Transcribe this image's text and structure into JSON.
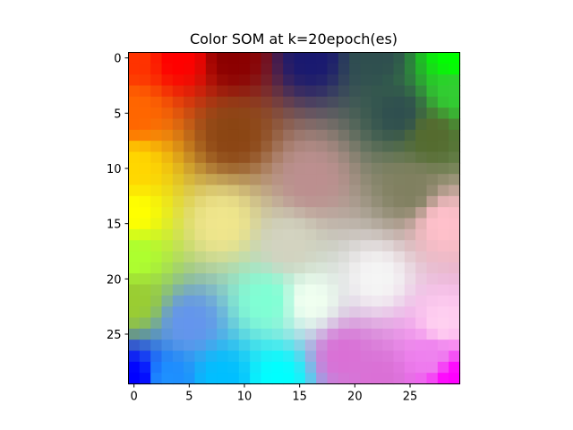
{
  "chart_data": {
    "type": "heatmap",
    "title": "Color SOM at k=20epoch(es)",
    "xlabel": "",
    "ylabel": "",
    "grid": false,
    "xlim": [
      -0.5,
      29.5
    ],
    "ylim": [
      29.5,
      -0.5
    ],
    "x_ticks": [
      0,
      5,
      10,
      15,
      20,
      25
    ],
    "y_ticks": [
      0,
      5,
      10,
      15,
      20,
      25
    ],
    "rows": 30,
    "cols": 30,
    "anchors": [
      {
        "row": 0,
        "col": 0,
        "color": "#ff3300"
      },
      {
        "row": 0,
        "col": 4,
        "color": "#ff0000"
      },
      {
        "row": 0,
        "col": 9,
        "color": "#8b0000"
      },
      {
        "row": 0,
        "col": 16,
        "color": "#191970"
      },
      {
        "row": 0,
        "col": 22,
        "color": "#2f4f4f"
      },
      {
        "row": 0,
        "col": 29,
        "color": "#00ff00"
      },
      {
        "row": 3,
        "col": 29,
        "color": "#32cd32"
      },
      {
        "row": 5,
        "col": 0,
        "color": "#ff6600"
      },
      {
        "row": 5,
        "col": 24,
        "color": "#2f4f4f"
      },
      {
        "row": 7,
        "col": 9,
        "color": "#8b4513"
      },
      {
        "row": 7,
        "col": 27,
        "color": "#556b2f"
      },
      {
        "row": 10,
        "col": 0,
        "color": "#ffd700"
      },
      {
        "row": 11,
        "col": 16,
        "color": "#bc8f8f"
      },
      {
        "row": 12,
        "col": 25,
        "color": "#808060"
      },
      {
        "row": 14,
        "col": 0,
        "color": "#ffff00"
      },
      {
        "row": 15,
        "col": 8,
        "color": "#f0e68c"
      },
      {
        "row": 15,
        "col": 28,
        "color": "#ffc0cb"
      },
      {
        "row": 18,
        "col": 0,
        "color": "#adff2f"
      },
      {
        "row": 17,
        "col": 14,
        "color": "#d3d3c0"
      },
      {
        "row": 20,
        "col": 22,
        "color": "#f5f5f5"
      },
      {
        "row": 22,
        "col": 0,
        "color": "#9acd32"
      },
      {
        "row": 22,
        "col": 12,
        "color": "#7fffd4"
      },
      {
        "row": 22,
        "col": 16,
        "color": "#f0fff0"
      },
      {
        "row": 24,
        "col": 5,
        "color": "#6495ed"
      },
      {
        "row": 24,
        "col": 28,
        "color": "#ffd0f0"
      },
      {
        "row": 27,
        "col": 27,
        "color": "#ee82ee"
      },
      {
        "row": 27,
        "col": 19,
        "color": "#da70d6"
      },
      {
        "row": 29,
        "col": 0,
        "color": "#0000ff"
      },
      {
        "row": 29,
        "col": 3,
        "color": "#1e90ff"
      },
      {
        "row": 29,
        "col": 8,
        "color": "#00bfff"
      },
      {
        "row": 29,
        "col": 13,
        "color": "#00ffff"
      },
      {
        "row": 29,
        "col": 22,
        "color": "#da70d6"
      },
      {
        "row": 29,
        "col": 29,
        "color": "#ff00ff"
      }
    ]
  }
}
